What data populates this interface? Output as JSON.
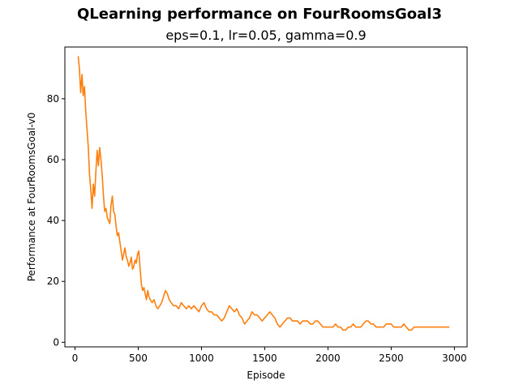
{
  "chart_data": {
    "type": "line",
    "title": "QLearning performance on FourRoomsGoal3",
    "subtitle": "eps=0.1, lr=0.05, gamma=0.9",
    "xlabel": "Episode",
    "ylabel": "Performance at FourRoomsGoal-v0",
    "xlim": [
      -80,
      3100
    ],
    "ylim": [
      -1.5,
      97
    ],
    "xticks": [
      0,
      500,
      1000,
      1500,
      2000,
      2500,
      3000
    ],
    "yticks": [
      0,
      20,
      40,
      60,
      80
    ],
    "grid": false,
    "legend": "none",
    "series": [
      {
        "color": "#ff7f0e",
        "x": [
          25,
          35,
          45,
          55,
          65,
          75,
          85,
          95,
          105,
          115,
          125,
          135,
          145,
          155,
          165,
          175,
          185,
          195,
          205,
          215,
          225,
          235,
          245,
          255,
          265,
          275,
          285,
          295,
          305,
          315,
          325,
          335,
          345,
          355,
          365,
          375,
          385,
          395,
          405,
          415,
          425,
          435,
          445,
          455,
          465,
          475,
          485,
          495,
          505,
          515,
          525,
          535,
          545,
          555,
          565,
          575,
          585,
          595,
          610,
          625,
          640,
          655,
          670,
          685,
          700,
          715,
          730,
          745,
          760,
          780,
          800,
          820,
          840,
          860,
          880,
          900,
          920,
          940,
          960,
          980,
          1000,
          1020,
          1040,
          1060,
          1080,
          1100,
          1120,
          1140,
          1160,
          1180,
          1200,
          1220,
          1240,
          1260,
          1280,
          1300,
          1320,
          1340,
          1360,
          1380,
          1400,
          1420,
          1440,
          1460,
          1480,
          1500,
          1520,
          1540,
          1560,
          1580,
          1600,
          1620,
          1640,
          1660,
          1680,
          1700,
          1720,
          1740,
          1760,
          1780,
          1800,
          1820,
          1840,
          1860,
          1880,
          1900,
          1920,
          1940,
          1960,
          1980,
          2000,
          2020,
          2040,
          2060,
          2080,
          2100,
          2120,
          2140,
          2160,
          2180,
          2200,
          2220,
          2240,
          2260,
          2280,
          2300,
          2320,
          2340,
          2360,
          2380,
          2400,
          2420,
          2440,
          2460,
          2480,
          2500,
          2520,
          2540,
          2560,
          2580,
          2600,
          2620,
          2640,
          2660,
          2680,
          2700,
          2720,
          2740,
          2760,
          2780,
          2800,
          2820,
          2840,
          2860,
          2880,
          2900,
          2920,
          2940,
          2960
        ],
        "y": [
          94,
          90,
          82,
          88,
          81,
          84,
          76,
          70,
          64,
          55,
          50,
          44,
          52,
          48,
          56,
          63,
          58,
          64,
          60,
          55,
          48,
          43,
          44,
          41,
          40,
          39,
          45,
          48,
          43,
          42,
          38,
          35,
          36,
          33,
          30,
          27,
          29,
          31,
          28,
          27,
          25,
          26,
          28,
          24,
          25,
          27,
          26,
          29,
          30,
          24,
          19,
          17,
          18,
          16,
          14,
          17,
          15,
          14,
          13,
          14,
          12,
          11,
          12,
          13,
          15,
          17,
          16,
          14,
          13,
          12,
          12,
          11,
          13,
          12,
          11,
          12,
          11,
          12,
          11,
          10,
          12,
          13,
          11,
          10,
          10,
          9,
          9,
          8,
          7,
          8,
          10,
          12,
          11,
          10,
          11,
          9,
          8,
          6,
          7,
          8,
          10,
          9,
          9,
          8,
          7,
          8,
          9,
          10,
          9,
          8,
          6,
          5,
          6,
          7,
          8,
          8,
          7,
          7,
          7,
          6,
          7,
          7,
          7,
          6,
          6,
          7,
          7,
          6,
          5,
          5,
          5,
          5,
          5,
          6,
          5,
          5,
          4,
          4,
          5,
          5,
          6,
          5,
          5,
          5,
          6,
          7,
          7,
          6,
          6,
          5,
          5,
          5,
          5,
          6,
          6,
          6,
          5,
          5,
          5,
          5,
          6,
          5,
          4,
          4,
          5,
          5,
          5,
          5,
          5,
          5,
          5,
          5,
          5,
          5,
          5,
          5,
          5,
          5,
          5
        ]
      }
    ]
  }
}
